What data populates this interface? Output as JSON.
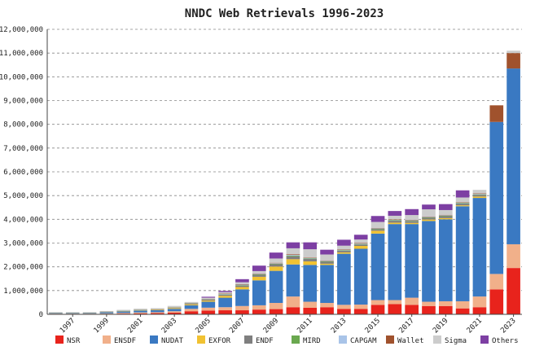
{
  "chart_data": {
    "type": "bar",
    "stacked": true,
    "title": "NNDC Web Retrievals 1996-2023",
    "xlabel": "",
    "ylabel": "",
    "ylim": [
      0,
      12000000
    ],
    "yticks": [
      0,
      1000000,
      2000000,
      3000000,
      4000000,
      5000000,
      6000000,
      7000000,
      8000000,
      9000000,
      10000000,
      11000000,
      12000000
    ],
    "ytick_labels": [
      "0",
      "1,000,000",
      "2,000,000",
      "3,000,000",
      "4,000,000",
      "5,000,000",
      "6,000,000",
      "7,000,000",
      "8,000,000",
      "9,000,000",
      "10,000,000",
      "11,000,000",
      "12,000,000"
    ],
    "grid": "horizontal dashed",
    "legend_position": "bottom",
    "categories": [
      "1996",
      "1997",
      "1998",
      "1999",
      "2000",
      "2001",
      "2002",
      "2003",
      "2004",
      "2005",
      "2006",
      "2007",
      "2008",
      "2009",
      "2010",
      "2011",
      "2012",
      "2013",
      "2014",
      "2015",
      "2016",
      "2017",
      "2018",
      "2019",
      "2020",
      "2021",
      "2022",
      "2023"
    ],
    "xtick_labels": [
      "1997",
      "1999",
      "2001",
      "2003",
      "2005",
      "2007",
      "2009",
      "2011",
      "2013",
      "2015",
      "2017",
      "2019",
      "2021",
      "2023"
    ],
    "series": [
      {
        "name": "NSR",
        "color": "#e8231c",
        "values": [
          10000,
          10000,
          10000,
          15000,
          30000,
          40000,
          50000,
          70000,
          130000,
          160000,
          170000,
          170000,
          200000,
          220000,
          300000,
          280000,
          300000,
          230000,
          230000,
          400000,
          430000,
          400000,
          350000,
          350000,
          250000,
          300000,
          1050000,
          1950000
        ]
      },
      {
        "name": "ENSDF",
        "color": "#f1b08a",
        "values": [
          20000,
          20000,
          20000,
          25000,
          30000,
          40000,
          40000,
          60000,
          100000,
          120000,
          130000,
          180000,
          180000,
          260000,
          450000,
          250000,
          180000,
          170000,
          180000,
          200000,
          170000,
          300000,
          180000,
          200000,
          300000,
          450000,
          650000,
          1000000
        ]
      },
      {
        "name": "NUDAT",
        "color": "#3a79c2",
        "values": [
          30000,
          30000,
          30000,
          50000,
          60000,
          80000,
          80000,
          100000,
          150000,
          250000,
          400000,
          700000,
          1050000,
          1350000,
          1350000,
          1550000,
          1600000,
          2150000,
          2350000,
          2800000,
          3200000,
          3100000,
          3400000,
          3450000,
          4000000,
          4150000,
          6400000,
          7400000
        ]
      },
      {
        "name": "EXFOR",
        "color": "#f1c232",
        "values": [
          10000,
          10000,
          10000,
          10000,
          15000,
          15000,
          20000,
          30000,
          40000,
          50000,
          80000,
          100000,
          150000,
          180000,
          220000,
          150000,
          50000,
          60000,
          120000,
          120000,
          60000,
          50000,
          60000,
          50000,
          40000,
          60000,
          0,
          0
        ]
      },
      {
        "name": "ENDF",
        "color": "#7f7f7f",
        "values": [
          5000,
          5000,
          5000,
          10000,
          10000,
          10000,
          15000,
          20000,
          30000,
          40000,
          50000,
          60000,
          80000,
          100000,
          120000,
          100000,
          80000,
          70000,
          60000,
          60000,
          80000,
          70000,
          70000,
          80000,
          70000,
          70000,
          0,
          0
        ]
      },
      {
        "name": "MIRD",
        "color": "#6aa84f",
        "values": [
          2000,
          2000,
          2000,
          3000,
          5000,
          5000,
          5000,
          8000,
          10000,
          10000,
          15000,
          20000,
          20000,
          20000,
          30000,
          20000,
          20000,
          20000,
          20000,
          20000,
          20000,
          20000,
          20000,
          20000,
          20000,
          20000,
          0,
          0
        ]
      },
      {
        "name": "CAPGAM",
        "color": "#a9c4e8",
        "values": [
          2000,
          2000,
          2000,
          3000,
          5000,
          5000,
          5000,
          8000,
          10000,
          10000,
          15000,
          20000,
          20000,
          20000,
          30000,
          20000,
          20000,
          20000,
          20000,
          20000,
          20000,
          20000,
          20000,
          20000,
          20000,
          20000,
          0,
          0
        ]
      },
      {
        "name": "Wallet",
        "color": "#a0522d",
        "values": [
          2000,
          2000,
          2000,
          3000,
          5000,
          5000,
          5000,
          8000,
          10000,
          10000,
          15000,
          20000,
          20000,
          20000,
          30000,
          20000,
          20000,
          20000,
          20000,
          20000,
          20000,
          20000,
          20000,
          20000,
          20000,
          20000,
          700000,
          650000
        ]
      },
      {
        "name": "Sigma",
        "color": "#cccccc",
        "values": [
          10000,
          10000,
          10000,
          20000,
          30000,
          40000,
          40000,
          50000,
          40000,
          50000,
          60000,
          80000,
          100000,
          180000,
          250000,
          350000,
          250000,
          150000,
          150000,
          250000,
          150000,
          200000,
          300000,
          200000,
          200000,
          150000,
          0,
          100000
        ]
      },
      {
        "name": "Others",
        "color": "#7d3fa3",
        "values": [
          0,
          0,
          0,
          0,
          0,
          0,
          0,
          0,
          0,
          40000,
          50000,
          130000,
          230000,
          250000,
          250000,
          290000,
          200000,
          250000,
          200000,
          250000,
          200000,
          250000,
          200000,
          250000,
          300000,
          0,
          0,
          0
        ]
      }
    ]
  }
}
